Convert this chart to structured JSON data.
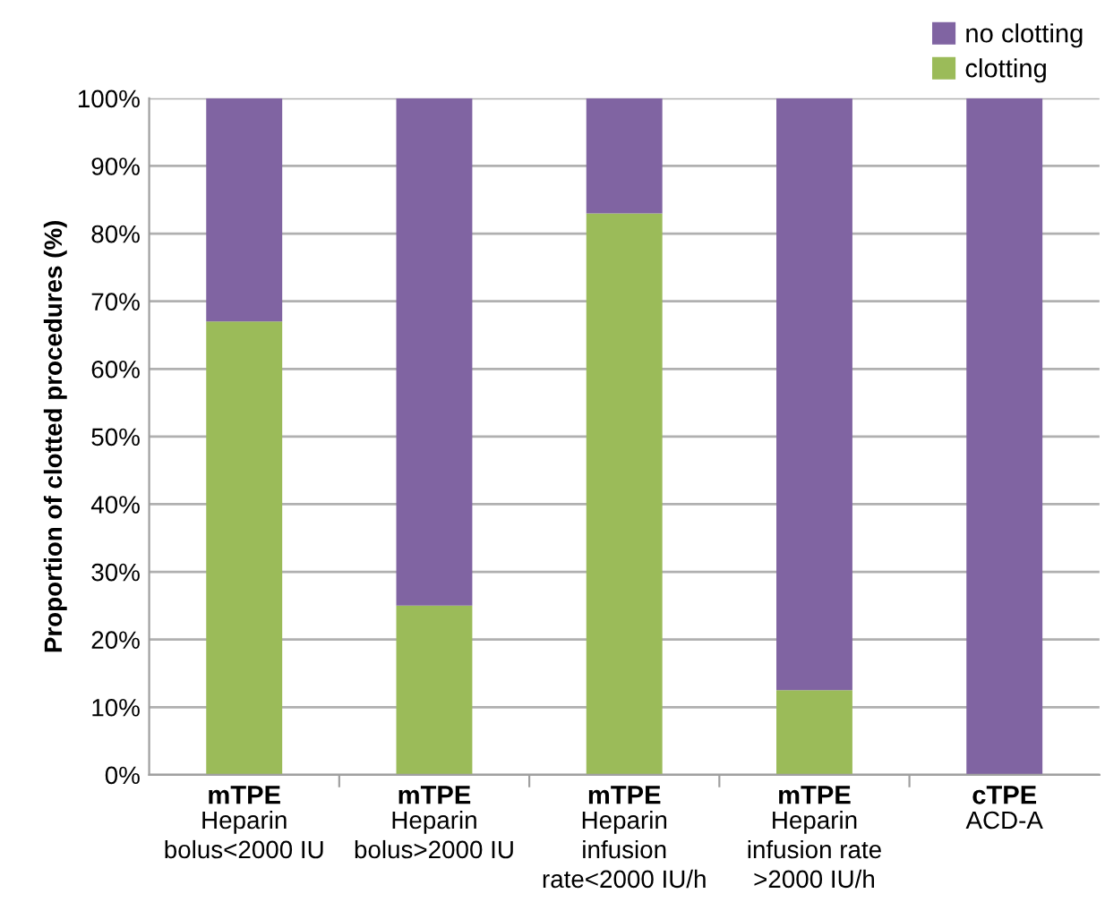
{
  "chart_data": {
    "type": "bar",
    "stacked": true,
    "ylabel": "Proportion of clotted procedures (%)",
    "categories": [
      "mTPE\nHeparin\nbolus<2000 IU",
      "mTPE\nHeparin\nbolus>2000 IU",
      "mTPE\nHeparin\ninfusion\nrate<2000 IU/h",
      "mTPE\nHeparin\ninfusion rate\n>2000 IU/h",
      "cTPE\nACD-A"
    ],
    "series": [
      {
        "name": "clotting",
        "color": "#9bbb59",
        "values": [
          67,
          25,
          83,
          12.5,
          0
        ]
      },
      {
        "name": "no clotting",
        "color": "#8064a2",
        "values": [
          33,
          75,
          17,
          87.5,
          100
        ]
      }
    ],
    "ylim": [
      0,
      100
    ],
    "yticks": [
      {
        "value": 0,
        "label": "0%"
      },
      {
        "value": 10,
        "label": "10%"
      },
      {
        "value": 20,
        "label": "20%"
      },
      {
        "value": 30,
        "label": "30%"
      },
      {
        "value": 40,
        "label": "40%"
      },
      {
        "value": 50,
        "label": "50%"
      },
      {
        "value": 60,
        "label": "60%"
      },
      {
        "value": 70,
        "label": "70%"
      },
      {
        "value": 80,
        "label": "80%"
      },
      {
        "value": 90,
        "label": "90%"
      },
      {
        "value": 100,
        "label": "100%"
      }
    ],
    "grid": "y",
    "legend": "top right"
  }
}
